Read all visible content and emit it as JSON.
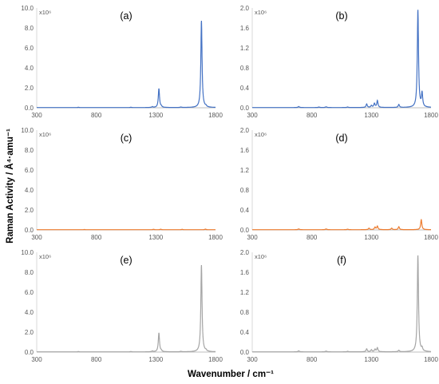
{
  "figure": {
    "ylabel": "Raman Activity / Å⁴·amu⁻¹",
    "xlabel": "Wavenumber / cm⁻¹",
    "scale_label": "x10⁶"
  },
  "chart_data": [
    {
      "panel": "(a)",
      "type": "line",
      "color": "#4472c4",
      "xlim": [
        300,
        1800
      ],
      "ylim": [
        0,
        10
      ],
      "xticks": [
        "300",
        "800",
        "1300",
        "1800"
      ],
      "yticks": [
        "0.0",
        "2.0",
        "4.0",
        "6.0",
        "8.0",
        "10.0"
      ],
      "grid": false,
      "baseline": 0.02,
      "width": 6,
      "peaks": [
        [
          650,
          0.03
        ],
        [
          1090,
          0.03
        ],
        [
          1270,
          0.08
        ],
        [
          1325,
          1.9
        ],
        [
          1345,
          0.1
        ],
        [
          1510,
          0.05
        ],
        [
          1682,
          8.7
        ],
        [
          1720,
          0.1
        ]
      ]
    },
    {
      "panel": "(b)",
      "type": "line",
      "color": "#4472c4",
      "xlim": [
        300,
        1800
      ],
      "ylim": [
        0,
        2
      ],
      "xticks": [
        "300",
        "800",
        "1300",
        "1800"
      ],
      "yticks": [
        "0.0",
        "0.4",
        "0.8",
        "1.2",
        "1.6",
        "2.0"
      ],
      "grid": false,
      "baseline": 0.005,
      "width": 6,
      "peaks": [
        [
          690,
          0.02
        ],
        [
          860,
          0.01
        ],
        [
          920,
          0.015
        ],
        [
          1100,
          0.01
        ],
        [
          1260,
          0.07
        ],
        [
          1300,
          0.04
        ],
        [
          1325,
          0.08
        ],
        [
          1350,
          0.14
        ],
        [
          1530,
          0.06
        ],
        [
          1690,
          1.95
        ],
        [
          1725,
          0.28
        ]
      ]
    },
    {
      "panel": "(c)",
      "type": "line",
      "color": "#ed7d31",
      "xlim": [
        300,
        1800
      ],
      "ylim": [
        0,
        10
      ],
      "xticks": [
        "300",
        "800",
        "1300",
        "1800"
      ],
      "yticks": [
        "0.0",
        "2.0",
        "4.0",
        "6.0",
        "8.0",
        "10.0"
      ],
      "grid": false,
      "baseline": 0.02,
      "width": 6,
      "peaks": [
        [
          700,
          0.02
        ],
        [
          1280,
          0.04
        ],
        [
          1340,
          0.05
        ],
        [
          1520,
          0.04
        ],
        [
          1715,
          0.06
        ]
      ]
    },
    {
      "panel": "(d)",
      "type": "line",
      "color": "#ed7d31",
      "xlim": [
        300,
        1800
      ],
      "ylim": [
        0,
        2
      ],
      "xticks": [
        "300",
        "800",
        "1300",
        "1800"
      ],
      "yticks": [
        "0.0",
        "0.4",
        "0.8",
        "1.2",
        "1.6",
        "2.0"
      ],
      "grid": false,
      "baseline": 0.005,
      "width": 6,
      "peaks": [
        [
          690,
          0.015
        ],
        [
          920,
          0.015
        ],
        [
          1100,
          0.01
        ],
        [
          1280,
          0.03
        ],
        [
          1330,
          0.05
        ],
        [
          1350,
          0.07
        ],
        [
          1470,
          0.03
        ],
        [
          1530,
          0.06
        ],
        [
          1718,
          0.2
        ]
      ]
    },
    {
      "panel": "(e)",
      "type": "line",
      "color": "#a5a5a5",
      "xlim": [
        300,
        1800
      ],
      "ylim": [
        0,
        10
      ],
      "xticks": [
        "300",
        "800",
        "1300",
        "1800"
      ],
      "yticks": [
        "0.0",
        "2.0",
        "4.0",
        "6.0",
        "8.0",
        "10.0"
      ],
      "grid": false,
      "baseline": 0.02,
      "width": 6,
      "peaks": [
        [
          650,
          0.03
        ],
        [
          1090,
          0.03
        ],
        [
          1270,
          0.08
        ],
        [
          1325,
          1.9
        ],
        [
          1345,
          0.1
        ],
        [
          1510,
          0.05
        ],
        [
          1682,
          8.7
        ],
        [
          1720,
          0.1
        ]
      ]
    },
    {
      "panel": "(f)",
      "type": "line",
      "color": "#a5a5a5",
      "xlim": [
        300,
        1800
      ],
      "ylim": [
        0,
        2
      ],
      "xticks": [
        "300",
        "800",
        "1300",
        "1800"
      ],
      "yticks": [
        "0.0",
        "0.4",
        "0.8",
        "1.2",
        "1.6",
        "2.0"
      ],
      "grid": false,
      "baseline": 0.005,
      "width": 6,
      "peaks": [
        [
          690,
          0.02
        ],
        [
          920,
          0.015
        ],
        [
          1100,
          0.01
        ],
        [
          1260,
          0.06
        ],
        [
          1300,
          0.04
        ],
        [
          1330,
          0.05
        ],
        [
          1350,
          0.08
        ],
        [
          1530,
          0.03
        ],
        [
          1690,
          1.93
        ],
        [
          1725,
          0.06
        ]
      ]
    }
  ]
}
